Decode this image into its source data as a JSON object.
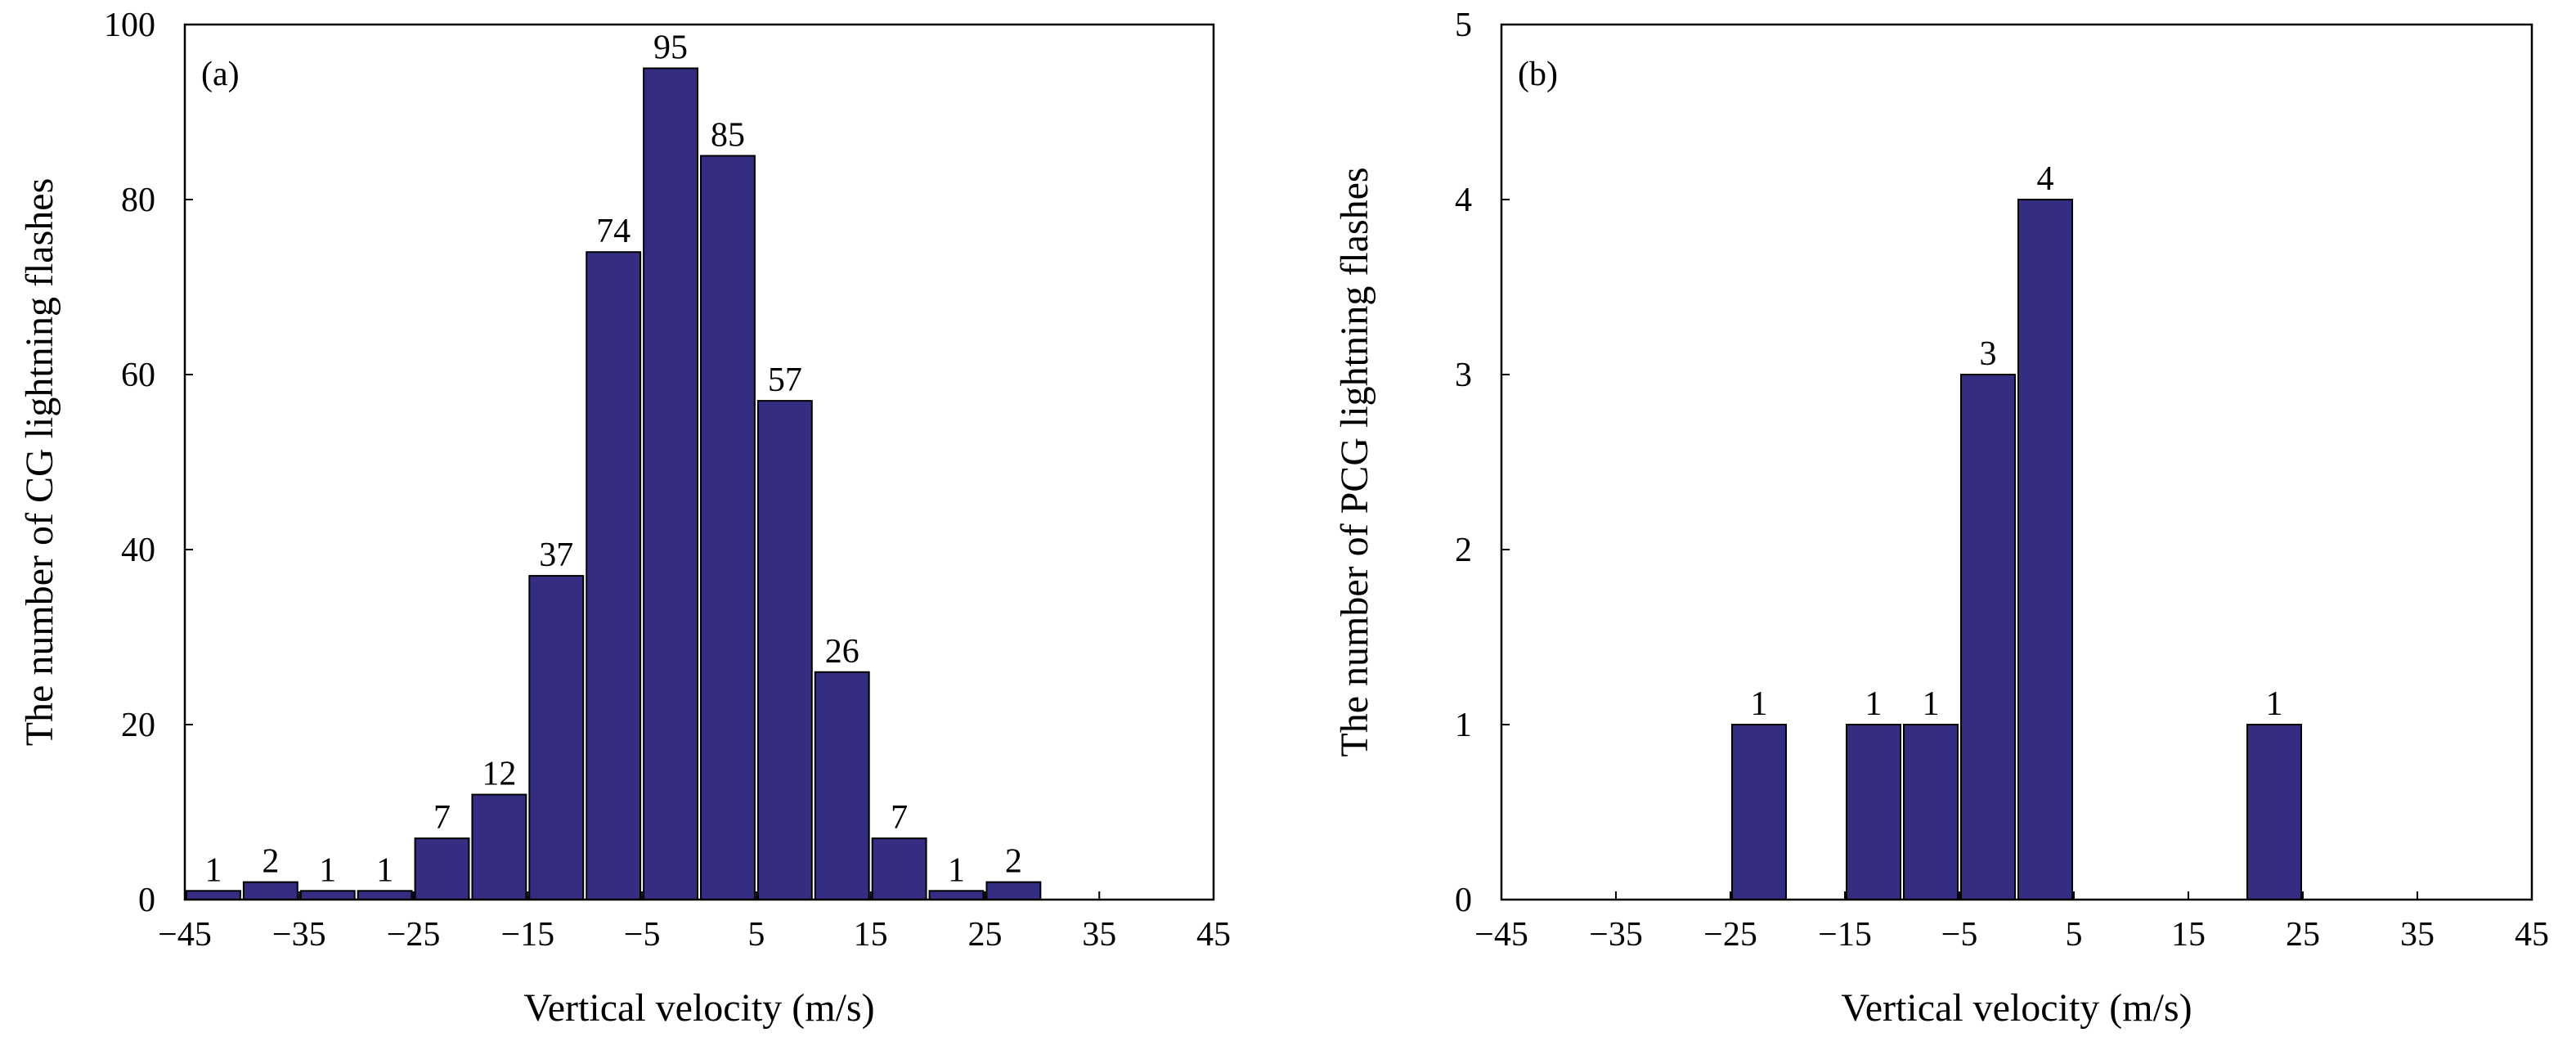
{
  "colors": {
    "bar_fill": "#352D82",
    "bar_stroke": "#000000",
    "axis": "#000000"
  },
  "chart_data": [
    {
      "type": "bar",
      "panel_label": "(a)",
      "xlabel": "Vertical velocity (m/s)",
      "ylabel": "The number of CG lightning flashes",
      "xlim": [
        -45,
        45
      ],
      "ylim": [
        0,
        100
      ],
      "xticks": [
        -45,
        -35,
        -25,
        -15,
        -5,
        5,
        15,
        25,
        35,
        45
      ],
      "xtick_labels": [
        "−45",
        "−35",
        "−25",
        "−15",
        "−5",
        "5",
        "15",
        "25",
        "35",
        "45"
      ],
      "yticks": [
        0,
        20,
        40,
        60,
        80,
        100
      ],
      "ytick_labels": [
        "0",
        "20",
        "40",
        "60",
        "80",
        "100"
      ],
      "bin_width": 5,
      "bins": [
        {
          "start": -45,
          "value": 1
        },
        {
          "start": -40,
          "value": 2
        },
        {
          "start": -35,
          "value": 1
        },
        {
          "start": -30,
          "value": 1
        },
        {
          "start": -25,
          "value": 7
        },
        {
          "start": -20,
          "value": 12
        },
        {
          "start": -15,
          "value": 37
        },
        {
          "start": -10,
          "value": 74
        },
        {
          "start": -5,
          "value": 95
        },
        {
          "start": 0,
          "value": 85
        },
        {
          "start": 5,
          "value": 57
        },
        {
          "start": 10,
          "value": 26
        },
        {
          "start": 15,
          "value": 7
        },
        {
          "start": 20,
          "value": 1
        },
        {
          "start": 25,
          "value": 2
        }
      ]
    },
    {
      "type": "bar",
      "panel_label": "(b)",
      "xlabel": "Vertical velocity (m/s)",
      "ylabel": "The number of PCG lightning flashes",
      "xlim": [
        -45,
        45
      ],
      "ylim": [
        0,
        5
      ],
      "xticks": [
        -45,
        -35,
        -25,
        -15,
        -5,
        5,
        15,
        25,
        35,
        45
      ],
      "xtick_labels": [
        "−45",
        "−35",
        "−25",
        "−15",
        "−5",
        "5",
        "15",
        "25",
        "35",
        "45"
      ],
      "yticks": [
        0,
        1,
        2,
        3,
        4,
        5
      ],
      "ytick_labels": [
        "0",
        "1",
        "2",
        "3",
        "4",
        "5"
      ],
      "bin_width": 5,
      "bins": [
        {
          "start": -25,
          "value": 1
        },
        {
          "start": -15,
          "value": 1
        },
        {
          "start": -10,
          "value": 1
        },
        {
          "start": -5,
          "value": 3
        },
        {
          "start": 0,
          "value": 4
        },
        {
          "start": 20,
          "value": 1
        }
      ]
    }
  ]
}
